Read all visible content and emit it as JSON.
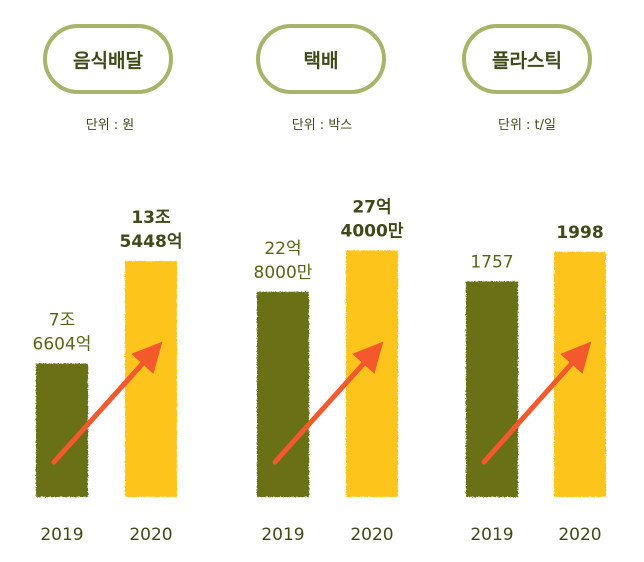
{
  "colors": {
    "bar_2019": "#6b7015",
    "bar_2020": "#fdc51a",
    "arrow": "#f4582d",
    "pill_border": "#a7b46a",
    "text_dark": "#3f4a18",
    "text_value_2019": "#5a6418",
    "baseline": "#6b7015"
  },
  "chart_data": [
    {
      "type": "bar",
      "title": "음식배달",
      "unit_label": "단위 : 원",
      "categories": [
        "2019",
        "2020"
      ],
      "values": [
        76604,
        135448
      ],
      "value_labels": [
        [
          "7조",
          "6604억"
        ],
        [
          "13조",
          "5448억"
        ]
      ],
      "ylim": [
        0,
        155000
      ]
    },
    {
      "type": "bar",
      "title": "택배",
      "unit_label": "단위 : 박스",
      "categories": [
        "2019",
        "2020"
      ],
      "values": [
        228000,
        274000
      ],
      "value_labels": [
        [
          "22억",
          "8000만"
        ],
        [
          "27억",
          "4000만"
        ]
      ],
      "ylim": [
        0,
        300000
      ]
    },
    {
      "type": "bar",
      "title": "플라스틱",
      "unit_label": "단위 : t/일",
      "categories": [
        "2019",
        "2020"
      ],
      "values": [
        1757,
        1998
      ],
      "value_labels": [
        [
          "1757"
        ],
        [
          "1998"
        ]
      ],
      "ylim": [
        0,
        2200
      ]
    }
  ]
}
